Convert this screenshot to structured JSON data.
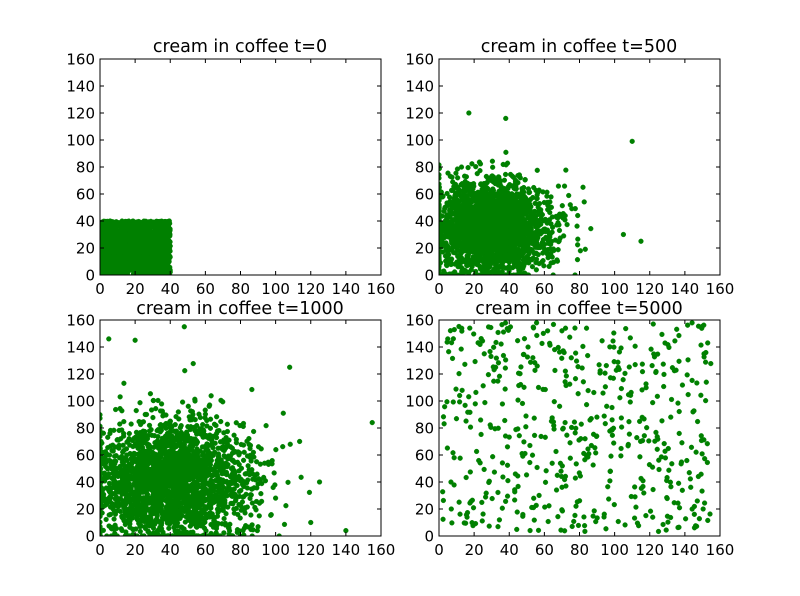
{
  "figure": {
    "background": "#ffffff"
  },
  "chart_data": [
    {
      "type": "scatter",
      "title": "cream in coffee t=0",
      "xlabel": "",
      "ylabel": "",
      "xlim": [
        0,
        160
      ],
      "ylim": [
        0,
        160
      ],
      "xticks": [
        "0",
        "20",
        "40",
        "60",
        "80",
        "100",
        "120",
        "140",
        "160"
      ],
      "yticks": [
        "0",
        "20",
        "40",
        "60",
        "80",
        "100",
        "120",
        "140",
        "160"
      ],
      "grid": false,
      "color": "#008000",
      "series": [
        {
          "distribution": "uniform",
          "count": 2000,
          "x_range": [
            0,
            40
          ],
          "y_range": [
            0,
            40
          ],
          "seed": 11,
          "outliers": []
        }
      ]
    },
    {
      "type": "scatter",
      "title": "cream in coffee t=500",
      "xlabel": "",
      "ylabel": "",
      "xlim": [
        0,
        160
      ],
      "ylim": [
        0,
        160
      ],
      "xticks": [
        "0",
        "20",
        "40",
        "60",
        "80",
        "100",
        "120",
        "140",
        "160"
      ],
      "yticks": [
        "0",
        "20",
        "40",
        "60",
        "80",
        "100",
        "120",
        "140",
        "160"
      ],
      "grid": false,
      "color": "#008000",
      "series": [
        {
          "distribution": "gaussian",
          "count": 2500,
          "center": [
            30,
            35
          ],
          "spread": [
            17,
            17
          ],
          "clip": [
            0,
            160
          ],
          "seed": 22,
          "outliers": [
            [
              110,
              99
            ],
            [
              17,
              120
            ],
            [
              38,
              116
            ],
            [
              115,
              25
            ],
            [
              105,
              30
            ],
            [
              82,
              65
            ]
          ]
        }
      ]
    },
    {
      "type": "scatter",
      "title": "cream in coffee t=1000",
      "xlabel": "",
      "ylabel": "",
      "xlim": [
        0,
        160
      ],
      "ylim": [
        0,
        160
      ],
      "xticks": [
        "0",
        "20",
        "40",
        "60",
        "80",
        "100",
        "120",
        "140",
        "160"
      ],
      "yticks": [
        "0",
        "20",
        "40",
        "60",
        "80",
        "100",
        "120",
        "140",
        "160"
      ],
      "grid": false,
      "color": "#008000",
      "series": [
        {
          "distribution": "gaussian",
          "count": 2500,
          "center": [
            40,
            40
          ],
          "spread": [
            23,
            23
          ],
          "clip": [
            0,
            160
          ],
          "seed": 33,
          "outliers": [
            [
              155,
              84
            ],
            [
              48,
              155
            ],
            [
              5,
              146
            ],
            [
              20,
              145
            ],
            [
              140,
              4
            ],
            [
              120,
              10
            ],
            [
              125,
              40
            ],
            [
              108,
              125
            ]
          ]
        }
      ]
    },
    {
      "type": "scatter",
      "title": "cream in coffee t=5000",
      "xlabel": "",
      "ylabel": "",
      "xlim": [
        0,
        160
      ],
      "ylim": [
        0,
        160
      ],
      "xticks": [
        "0",
        "20",
        "40",
        "60",
        "80",
        "100",
        "120",
        "140",
        "160"
      ],
      "yticks": [
        "0",
        "20",
        "40",
        "60",
        "80",
        "100",
        "120",
        "140",
        "160"
      ],
      "grid": false,
      "color": "#008000",
      "series": [
        {
          "distribution": "uniform",
          "count": 520,
          "x_range": [
            2,
            155
          ],
          "y_range": [
            3,
            158
          ],
          "seed": 44,
          "outliers": [
            [
              122,
              157
            ],
            [
              70,
              152
            ],
            [
              5,
              146
            ],
            [
              7,
              20
            ],
            [
              153,
              143
            ]
          ]
        }
      ]
    }
  ]
}
